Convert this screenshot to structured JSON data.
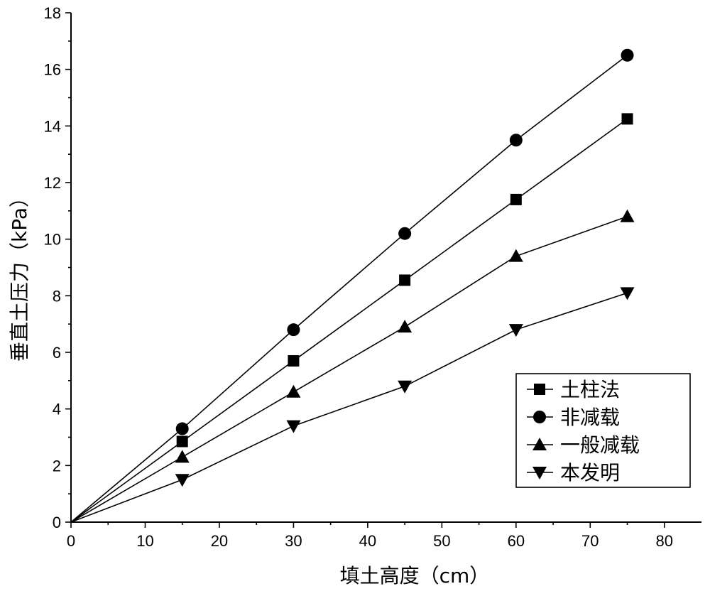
{
  "chart_data": {
    "type": "line",
    "xlabel": "填土高度（cm）",
    "ylabel": "垂直土压力（kPa）",
    "xlim": [
      0,
      85
    ],
    "ylim": [
      0,
      18
    ],
    "xticks": [
      0,
      10,
      20,
      30,
      40,
      50,
      60,
      70,
      80
    ],
    "yticks": [
      0,
      2,
      4,
      6,
      8,
      10,
      12,
      14,
      16,
      18
    ],
    "grid": false,
    "legend_position": "bottom-right",
    "x": [
      0,
      15,
      30,
      45,
      60,
      75
    ],
    "series": [
      {
        "name": "土柱法",
        "marker": "square",
        "values": [
          0,
          2.85,
          5.7,
          8.55,
          11.4,
          14.25
        ]
      },
      {
        "name": "非减载",
        "marker": "circle",
        "values": [
          0,
          3.3,
          6.8,
          10.2,
          13.5,
          16.5
        ]
      },
      {
        "name": "一般减载",
        "marker": "triangle-up",
        "values": [
          0,
          2.3,
          4.6,
          6.9,
          9.4,
          10.8
        ]
      },
      {
        "name": "本发明",
        "marker": "triangle-down",
        "values": [
          0,
          1.5,
          3.4,
          4.8,
          6.8,
          8.1
        ]
      }
    ]
  }
}
